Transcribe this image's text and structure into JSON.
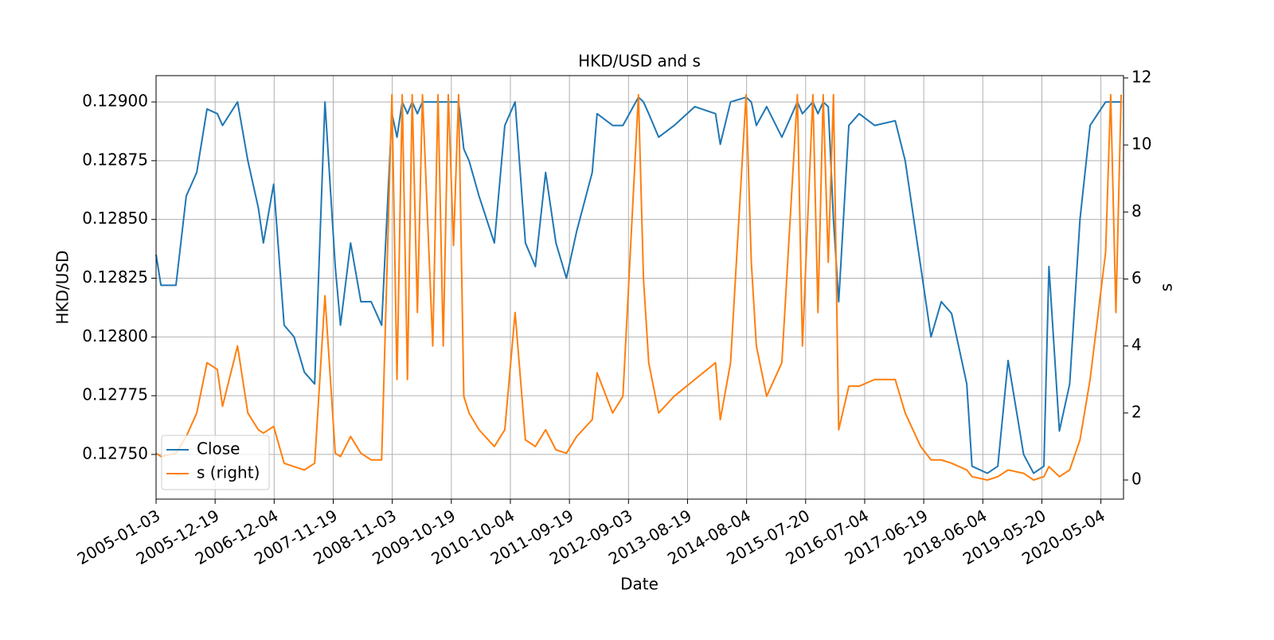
{
  "chart_data": {
    "type": "line",
    "title": "HKD/USD and s",
    "xlabel": "Date",
    "ylabel": "HKD/USD",
    "y2label": "s",
    "x": [
      "2005-01-03",
      "2005-02-01",
      "2005-05-01",
      "2005-07-01",
      "2005-09-01",
      "2005-11-01",
      "2006-01-01",
      "2006-02-01",
      "2006-05-01",
      "2006-07-01",
      "2006-09-01",
      "2006-10-01",
      "2006-12-01",
      "2007-02-01",
      "2007-04-01",
      "2007-06-01",
      "2007-08-01",
      "2007-10-01",
      "2007-12-01",
      "2008-01-01",
      "2008-03-01",
      "2008-05-01",
      "2008-07-01",
      "2008-09-01",
      "2008-11-01",
      "2008-12-01",
      "2009-01-01",
      "2009-02-01",
      "2009-03-01",
      "2009-04-01",
      "2009-05-01",
      "2009-07-01",
      "2009-08-01",
      "2009-09-01",
      "2009-10-01",
      "2009-11-01",
      "2009-12-01",
      "2010-01-01",
      "2010-02-01",
      "2010-04-01",
      "2010-07-01",
      "2010-09-01",
      "2010-11-01",
      "2011-01-01",
      "2011-03-01",
      "2011-05-01",
      "2011-07-01",
      "2011-09-01",
      "2011-11-01",
      "2012-02-01",
      "2012-03-01",
      "2012-06-01",
      "2012-08-01",
      "2012-11-01",
      "2012-12-01",
      "2013-01-01",
      "2013-03-01",
      "2013-06-01",
      "2013-10-01",
      "2014-02-01",
      "2014-03-01",
      "2014-05-01",
      "2014-08-01",
      "2014-09-01",
      "2014-10-01",
      "2014-12-01",
      "2015-03-01",
      "2015-06-01",
      "2015-07-01",
      "2015-09-01",
      "2015-10-01",
      "2015-11-01",
      "2015-12-01",
      "2016-01-01",
      "2016-02-01",
      "2016-04-01",
      "2016-06-01",
      "2016-09-01",
      "2017-01-01",
      "2017-03-01",
      "2017-06-01",
      "2017-08-01",
      "2017-10-01",
      "2017-12-01",
      "2018-03-01",
      "2018-04-01",
      "2018-07-01",
      "2018-09-01",
      "2018-11-01",
      "2019-02-01",
      "2019-04-01",
      "2019-06-01",
      "2019-07-01",
      "2019-09-01",
      "2019-11-01",
      "2020-01-01",
      "2020-03-01",
      "2020-06-01",
      "2020-07-01",
      "2020-08-01",
      "2020-09-01"
    ],
    "series": [
      {
        "name": "Close",
        "color": "#1f77b4",
        "values": [
          0.12835,
          0.12822,
          0.12822,
          0.1286,
          0.1287,
          0.12897,
          0.12895,
          0.1289,
          0.129,
          0.12875,
          0.12855,
          0.1284,
          0.12865,
          0.12805,
          0.128,
          0.12785,
          0.1278,
          0.129,
          0.1283,
          0.12805,
          0.1284,
          0.12815,
          0.12815,
          0.12805,
          0.12895,
          0.12885,
          0.129,
          0.12895,
          0.129,
          0.12895,
          0.129,
          0.129,
          0.129,
          0.129,
          0.129,
          0.129,
          0.129,
          0.1288,
          0.12875,
          0.1286,
          0.1284,
          0.1289,
          0.129,
          0.1284,
          0.1283,
          0.1287,
          0.1284,
          0.12825,
          0.12845,
          0.1287,
          0.12895,
          0.1289,
          0.1289,
          0.12902,
          0.129,
          0.12895,
          0.12885,
          0.1289,
          0.12898,
          0.12895,
          0.12882,
          0.129,
          0.12902,
          0.129,
          0.1289,
          0.12898,
          0.12885,
          0.129,
          0.12895,
          0.129,
          0.12895,
          0.129,
          0.12898,
          0.1285,
          0.12815,
          0.1289,
          0.12895,
          0.1289,
          0.12892,
          0.12875,
          0.1283,
          0.128,
          0.12815,
          0.1281,
          0.1278,
          0.12745,
          0.12742,
          0.12745,
          0.1279,
          0.1275,
          0.12742,
          0.12745,
          0.1283,
          0.1276,
          0.1278,
          0.1285,
          0.1289,
          0.129,
          0.129,
          0.129,
          0.129
        ]
      },
      {
        "name": "s (right)",
        "color": "#ff7f0e",
        "axis": "y2",
        "values": [
          0.8,
          0.7,
          0.8,
          1.3,
          2.0,
          3.5,
          3.3,
          2.2,
          4.0,
          2.0,
          1.5,
          1.4,
          1.6,
          0.5,
          0.4,
          0.3,
          0.5,
          5.5,
          0.8,
          0.7,
          1.3,
          0.8,
          0.6,
          0.6,
          11.5,
          3.0,
          11.5,
          3.0,
          11.5,
          5.0,
          11.5,
          4.0,
          11.5,
          4.0,
          11.5,
          7.0,
          11.5,
          2.5,
          2.0,
          1.5,
          1.0,
          1.5,
          5.0,
          1.2,
          1.0,
          1.5,
          0.9,
          0.8,
          1.3,
          1.8,
          3.2,
          2.0,
          2.5,
          11.5,
          6.0,
          3.5,
          2.0,
          2.5,
          3.0,
          3.5,
          1.8,
          3.5,
          11.5,
          6.5,
          4.0,
          2.5,
          3.5,
          11.5,
          4.0,
          11.5,
          5.0,
          11.5,
          6.5,
          11.5,
          1.5,
          2.8,
          2.8,
          3.0,
          3.0,
          2.0,
          1.0,
          0.6,
          0.6,
          0.5,
          0.3,
          0.1,
          0.0,
          0.1,
          0.3,
          0.2,
          0.0,
          0.1,
          0.4,
          0.1,
          0.3,
          1.2,
          3.0,
          6.8,
          11.5,
          5.0,
          11.5
        ]
      }
    ],
    "xlim": [
      "2005-01-03",
      "2020-09-15"
    ],
    "xticks": [
      "2005-01-03",
      "2005-12-19",
      "2006-12-04",
      "2007-11-19",
      "2008-11-03",
      "2009-10-19",
      "2010-10-04",
      "2011-09-19",
      "2012-09-03",
      "2013-08-19",
      "2014-08-04",
      "2015-07-20",
      "2016-07-04",
      "2017-06-19",
      "2018-06-04",
      "2019-05-20",
      "2020-05-04"
    ],
    "ylim": [
      0.12731,
      0.129112
    ],
    "yticks": [
      {
        "value": 0.1275,
        "label": "0.12750"
      },
      {
        "value": 0.12775,
        "label": "0.12775"
      },
      {
        "value": 0.128,
        "label": "0.12800"
      },
      {
        "value": 0.12825,
        "label": "0.12825"
      },
      {
        "value": 0.1285,
        "label": "0.12850"
      },
      {
        "value": 0.12875,
        "label": "0.12875"
      },
      {
        "value": 0.129,
        "label": "0.12900"
      }
    ],
    "y2lim": [
      -0.57,
      12.07
    ],
    "y2ticks": [
      0,
      2,
      4,
      6,
      8,
      10,
      12
    ],
    "grid": true,
    "legend": "lower left"
  }
}
